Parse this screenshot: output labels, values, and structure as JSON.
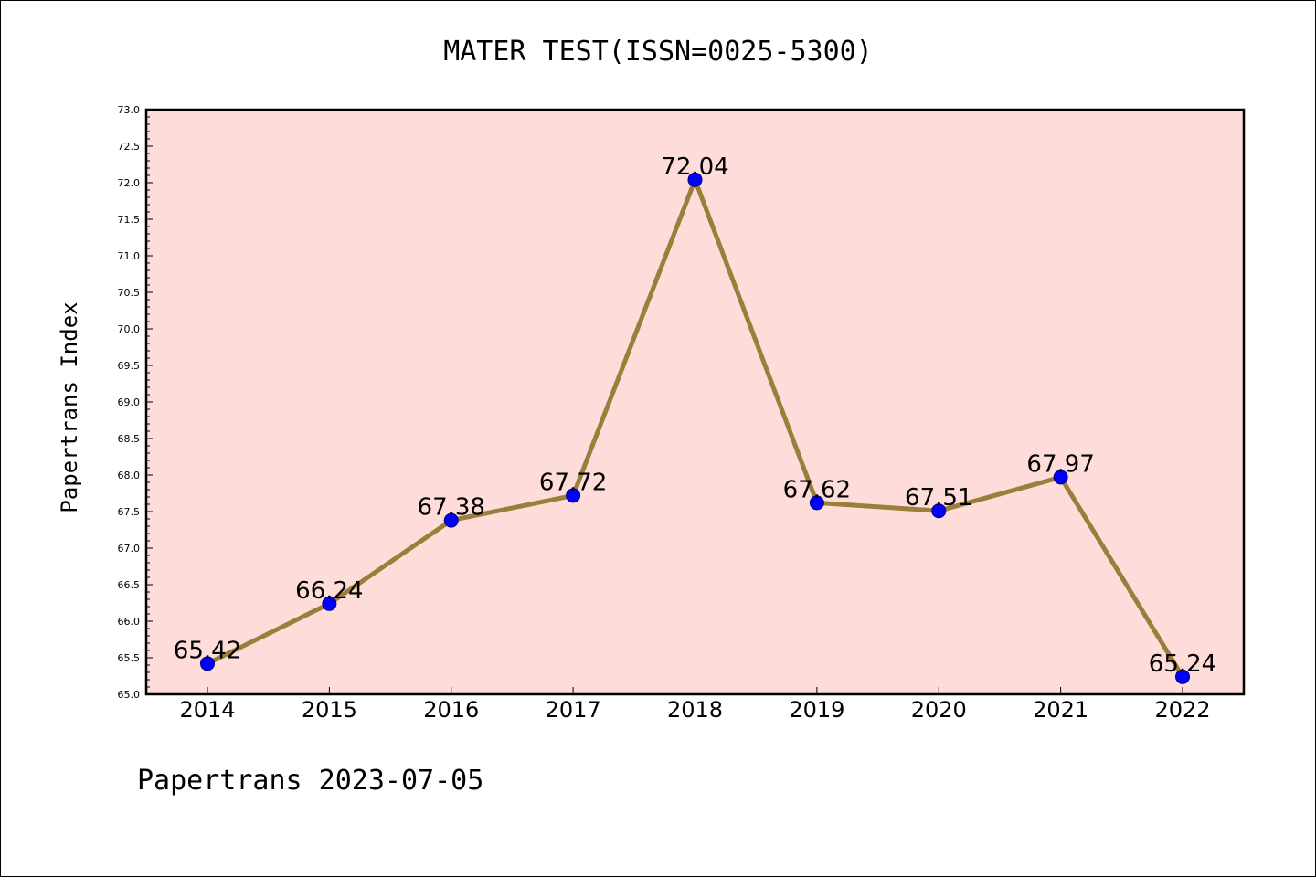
{
  "chart_data": {
    "type": "line",
    "title": "MATER TEST(ISSN=0025-5300)",
    "ylabel": "Papertrans Index",
    "xlabel": "",
    "footer": "Papertrans 2023-07-05",
    "categories": [
      "2014",
      "2015",
      "2016",
      "2017",
      "2018",
      "2019",
      "2020",
      "2021",
      "2022"
    ],
    "values": [
      65.42,
      66.24,
      67.38,
      67.72,
      72.04,
      67.62,
      67.51,
      67.97,
      65.24
    ],
    "data_labels": [
      "65.42",
      "66.24",
      "67.38",
      "67.72",
      "72.04",
      "67.62",
      "67.51",
      "67.97",
      "65.24"
    ],
    "ylim": [
      65.0,
      73.0
    ],
    "yticks": [
      "65.0",
      "65.5",
      "66.0",
      "66.5",
      "67.0",
      "67.5",
      "68.0",
      "68.5",
      "69.0",
      "69.5",
      "70.0",
      "70.5",
      "71.0",
      "71.5",
      "72.0",
      "72.5",
      "73.0"
    ],
    "grid": false,
    "legend": "none",
    "colors": {
      "plot_background": "#fddcd9",
      "line": "#9a7f3a",
      "marker_fill": "#0000ff",
      "marker_edge": "#000080"
    }
  }
}
